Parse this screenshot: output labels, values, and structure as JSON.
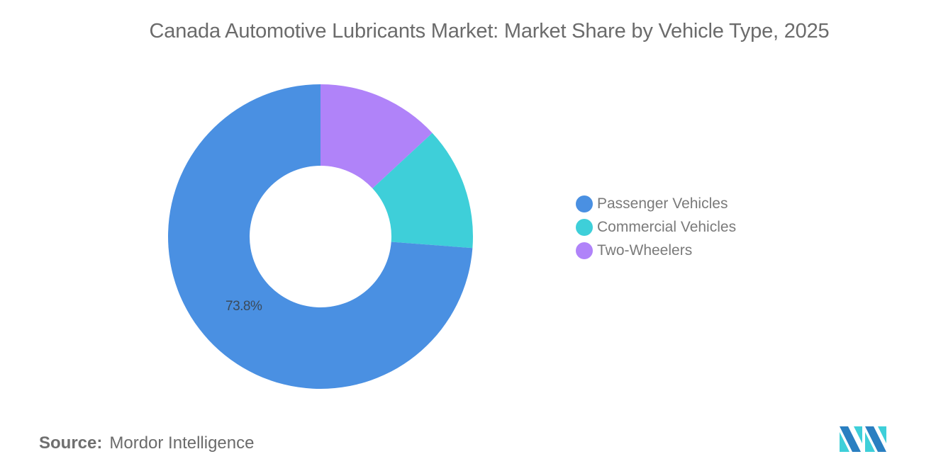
{
  "header": {
    "title": "Canada Automotive Lubricants Market: Market Share by Vehicle Type, 2025"
  },
  "chart_data": {
    "type": "pie",
    "subtype": "donut",
    "title": "Canada Automotive Lubricants Market: Market Share by Vehicle Type, 2025",
    "categories": [
      "Passenger Vehicles",
      "Commercial Vehicles",
      "Two-Wheelers"
    ],
    "values": [
      73.8,
      13.1,
      13.1
    ],
    "unit": "%",
    "colors": [
      "#4A90E2",
      "#3ECFD9",
      "#B083F9"
    ],
    "slice_order_clockwise_from_top": [
      "Two-Wheelers",
      "Commercial Vehicles",
      "Passenger Vehicles"
    ],
    "data_labels": [
      {
        "category": "Passenger Vehicles",
        "text": "73.8%"
      }
    ],
    "legend_position": "right"
  },
  "legend": {
    "items": [
      {
        "label": "Passenger Vehicles",
        "color": "#4A90E2"
      },
      {
        "label": "Commercial Vehicles",
        "color": "#3ECFD9"
      },
      {
        "label": "Two-Wheelers",
        "color": "#B083F9"
      }
    ]
  },
  "labels": {
    "passenger_value": "73.8%"
  },
  "footer": {
    "source_key": "Source:",
    "source_value": "Mordor Intelligence",
    "logo": "mordor-intelligence-logo-icon"
  }
}
